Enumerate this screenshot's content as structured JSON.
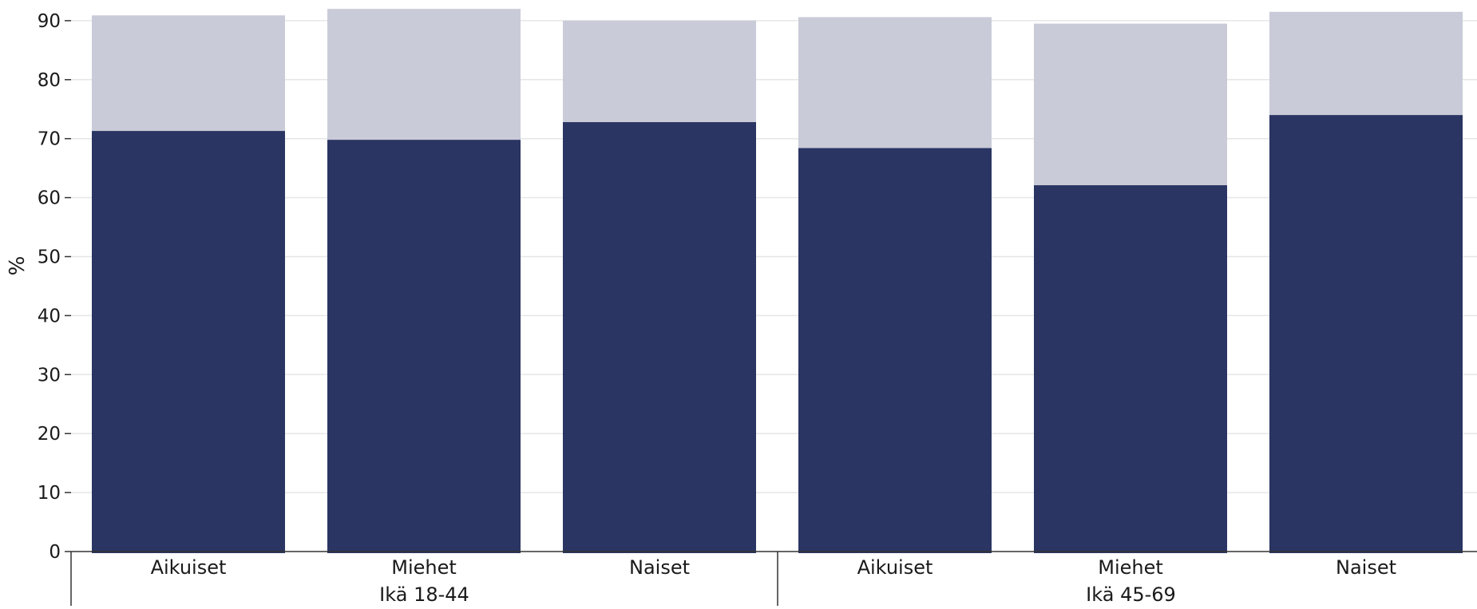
{
  "chart_data": {
    "type": "bar",
    "stacked": "overlay",
    "ylabel": "%",
    "ylim": [
      0,
      92
    ],
    "yticks": [
      0,
      10,
      20,
      30,
      40,
      50,
      60,
      70,
      80,
      90
    ],
    "grid": true,
    "groups": [
      {
        "label": "Ikä 18-44",
        "categories": [
          "Aikuiset",
          "Miehet",
          "Naiset"
        ]
      },
      {
        "label": "Ikä 45-69",
        "categories": [
          "Aikuiset",
          "Miehet",
          "Naiset"
        ]
      }
    ],
    "categories": [
      "Aikuiset",
      "Miehet",
      "Naiset",
      "Aikuiset",
      "Miehet",
      "Naiset"
    ],
    "series": [
      {
        "values": [
          90.9,
          92.0,
          90.0,
          90.6,
          89.5,
          91.5
        ],
        "color": "#c9cbd8"
      },
      {
        "values": [
          71.3,
          69.8,
          72.8,
          68.4,
          62.1,
          74.0
        ],
        "color": "#2a3563"
      }
    ]
  },
  "colors": {
    "grid": "#e6e6e6",
    "axis": "#333333"
  }
}
